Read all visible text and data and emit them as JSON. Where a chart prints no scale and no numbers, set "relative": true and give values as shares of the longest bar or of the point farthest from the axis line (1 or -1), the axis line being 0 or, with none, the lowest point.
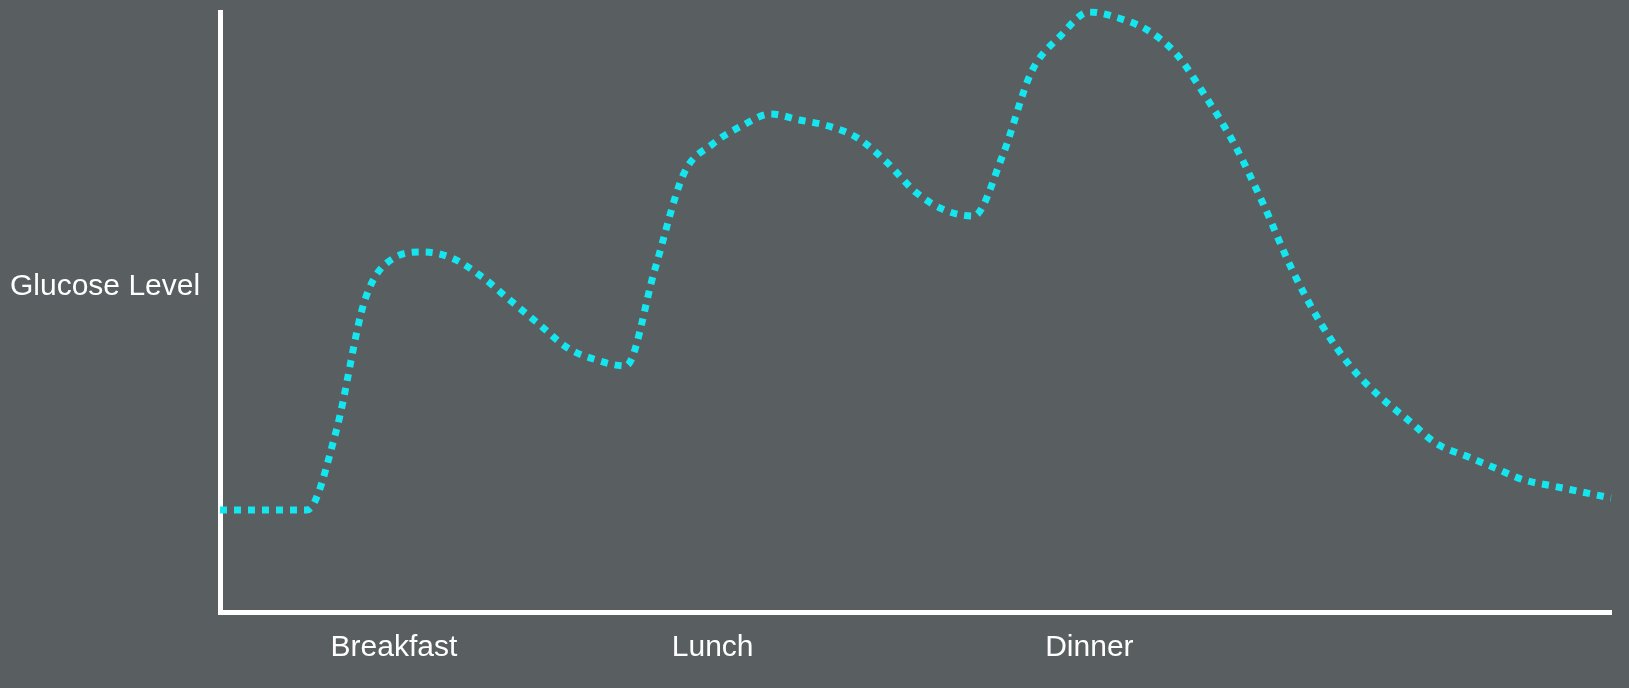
{
  "chart_data": {
    "type": "line",
    "relative": true,
    "ylabel": "Glucose Level",
    "categories": [
      null,
      null,
      null,
      null,
      null,
      null,
      "Breakfast",
      null,
      null,
      null,
      null,
      null,
      null,
      null,
      null,
      null,
      null,
      "Lunch",
      null,
      null,
      null,
      null,
      null,
      null,
      null,
      null,
      null,
      null,
      null,
      null,
      "Dinner",
      null,
      null,
      null,
      null,
      null,
      null,
      null,
      null,
      null,
      null,
      null,
      null,
      null,
      null,
      null,
      null,
      null,
      null
    ],
    "series": [
      {
        "color": "#14e6f0",
        "values": [
          0.17,
          0.17,
          0.17,
          0.17,
          0.3,
          0.52,
          0.59,
          0.6,
          0.59,
          0.56,
          0.52,
          0.48,
          0.44,
          0.42,
          0.41,
          0.57,
          0.73,
          0.78,
          0.81,
          0.83,
          0.82,
          0.81,
          0.79,
          0.75,
          0.7,
          0.67,
          0.66,
          0.76,
          0.9,
          0.96,
          1.0,
          0.99,
          0.97,
          0.93,
          0.86,
          0.78,
          0.68,
          0.57,
          0.48,
          0.41,
          0.36,
          0.32,
          0.28,
          0.26,
          0.24,
          0.22,
          0.21,
          0.2,
          0.19
        ]
      }
    ],
    "grid": false,
    "legend": false,
    "marker": "none",
    "line_style": "dotted"
  }
}
